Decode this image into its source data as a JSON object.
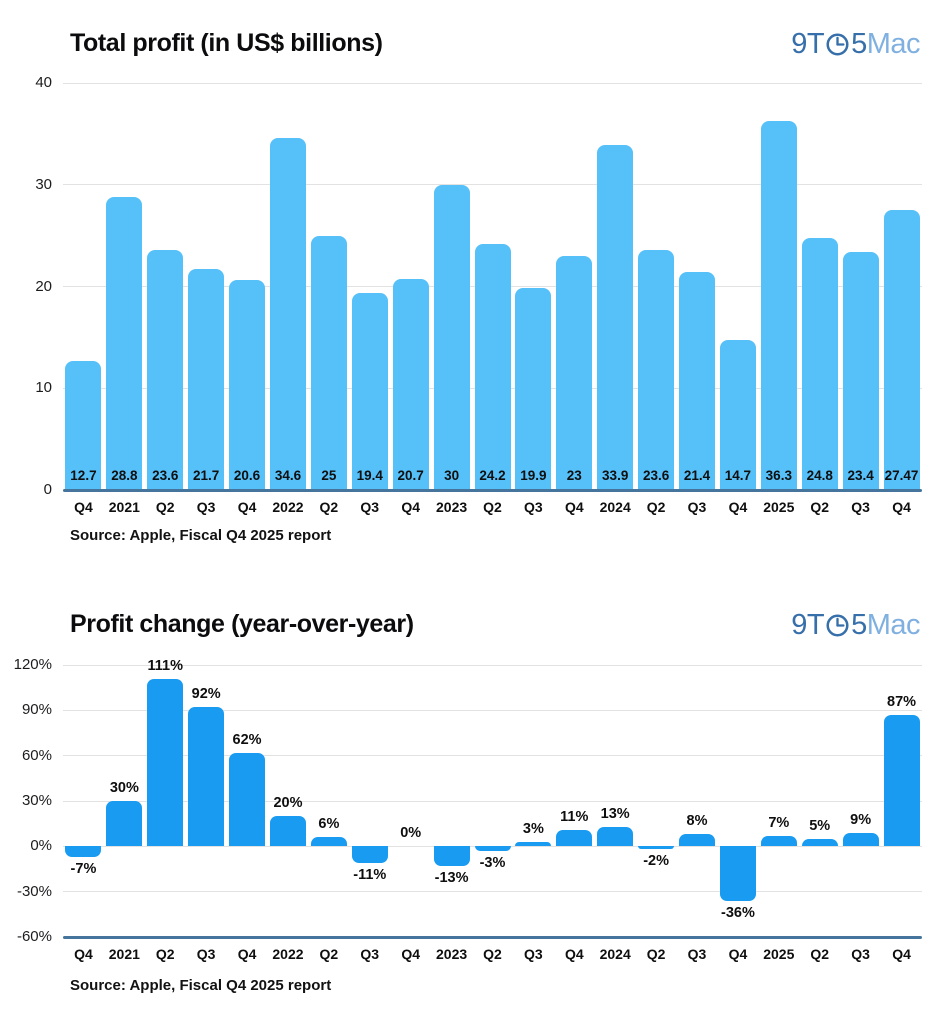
{
  "logo": {
    "part1": "9T",
    "part2": "5",
    "part3": "Mac",
    "icon": "clock-icon",
    "dark_color": "#366fa9",
    "light_color": "#7fb0e0"
  },
  "chart_data": [
    {
      "type": "bar",
      "title": "Total profit (in US$ billions)",
      "source": "Source: Apple, Fiscal Q4 2025 report",
      "categories": [
        "Q4",
        "2021",
        "Q2",
        "Q3",
        "Q4",
        "2022",
        "Q2",
        "Q3",
        "Q4",
        "2023",
        "Q2",
        "Q3",
        "Q4",
        "2024",
        "Q2",
        "Q3",
        "Q4",
        "2025",
        "Q2",
        "Q3",
        "Q4"
      ],
      "values": [
        12.7,
        28.8,
        23.6,
        21.7,
        20.6,
        34.6,
        25,
        19.4,
        20.7,
        30,
        24.2,
        19.9,
        23,
        33.9,
        23.6,
        21.4,
        14.7,
        36.3,
        24.8,
        23.4,
        27.47
      ],
      "value_labels": [
        "12.7",
        "28.8",
        "23.6",
        "21.7",
        "20.6",
        "34.6",
        "25",
        "19.4",
        "20.7",
        "30",
        "24.2",
        "19.9",
        "23",
        "33.9",
        "23.6",
        "21.4",
        "14.7",
        "36.3",
        "24.8",
        "23.4",
        "27.47"
      ],
      "ylim": [
        0,
        40
      ],
      "yticks": [
        40,
        30,
        20,
        10,
        0
      ],
      "ytick_labels": [
        "40",
        "30",
        "20",
        "10",
        "0"
      ],
      "grid": true,
      "legend": null,
      "bar_color": "#56c0f8",
      "axis_color": "#45759d",
      "value_label_position": "inside-bottom"
    },
    {
      "type": "bar",
      "title": "Profit change (year-over-year)",
      "source": "Source: Apple, Fiscal Q4 2025 report",
      "categories": [
        "Q4",
        "2021",
        "Q2",
        "Q3",
        "Q4",
        "2022",
        "Q2",
        "Q3",
        "Q4",
        "2023",
        "Q2",
        "Q3",
        "Q4",
        "2024",
        "Q2",
        "Q3",
        "Q4",
        "2025",
        "Q2",
        "Q3",
        "Q4"
      ],
      "values": [
        -7,
        30,
        111,
        92,
        62,
        20,
        6,
        -11,
        0,
        -13,
        -3,
        3,
        11,
        13,
        -2,
        8,
        -36,
        7,
        5,
        9,
        87
      ],
      "value_labels": [
        "-7%",
        "30%",
        "111%",
        "92%",
        "62%",
        "20%",
        "6%",
        "-11%",
        "0%",
        "-13%",
        "-3%",
        "3%",
        "11%",
        "13%",
        "-2%",
        "8%",
        "-36%",
        "7%",
        "5%",
        "9%",
        "87%"
      ],
      "ylim": [
        -60,
        120
      ],
      "yticks": [
        120,
        90,
        60,
        30,
        0,
        -30,
        -60
      ],
      "ytick_labels": [
        "120%",
        "90%",
        "60%",
        "30%",
        "0%",
        "-30%",
        "-60%"
      ],
      "grid": true,
      "legend": null,
      "bar_color": "#189bf0",
      "axis_color": "#45759d",
      "value_label_position": "outside-end"
    }
  ]
}
